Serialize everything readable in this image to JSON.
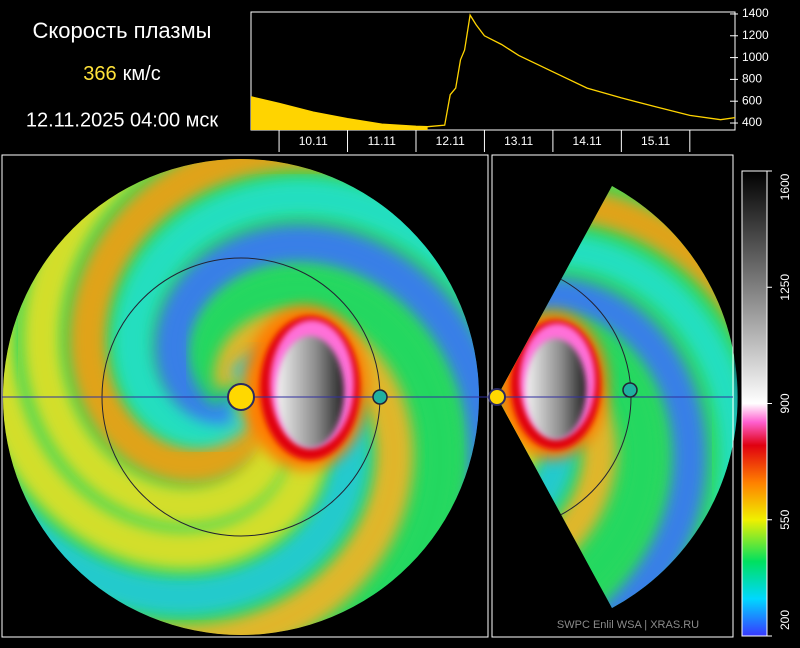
{
  "header": {
    "title": "Скорость плазмы",
    "speed_value": "366",
    "speed_unit": "км/с",
    "datetime": "12.11.2025 04:00 мск"
  },
  "chart_data": {
    "type": "line",
    "color": "#ffd400",
    "fill_color": "#ffd400",
    "x": [
      9.59,
      10.0,
      10.5,
      11.0,
      11.5,
      12.0,
      12.17,
      12.42,
      12.5,
      12.58,
      12.65,
      12.71,
      12.79,
      12.88,
      13.0,
      13.25,
      13.5,
      14.0,
      14.5,
      15.0,
      15.5,
      16.0,
      16.45,
      16.66
    ],
    "values": [
      640,
      580,
      500,
      440,
      390,
      370,
      366,
      380,
      660,
      720,
      980,
      1070,
      1390,
      1300,
      1200,
      1120,
      1020,
      870,
      720,
      630,
      550,
      470,
      430,
      450
    ],
    "fill_until": 12.17,
    "xlim": [
      9.59,
      16.66
    ],
    "xticks": [
      {
        "value": 10.5,
        "label": "10.11"
      },
      {
        "value": 11.5,
        "label": "11.11"
      },
      {
        "value": 12.5,
        "label": "12.11"
      },
      {
        "value": 13.5,
        "label": "13.11"
      },
      {
        "value": 14.5,
        "label": "14.11"
      },
      {
        "value": 15.5,
        "label": "15.11"
      }
    ],
    "xminor_ticks": [
      10,
      11,
      12,
      13,
      14,
      15,
      16
    ],
    "ylim": [
      336,
      1418
    ],
    "yticks": [
      400,
      600,
      800,
      1000,
      1200,
      1400
    ]
  },
  "colorbar": {
    "lim": [
      200,
      1600
    ],
    "ticks": [
      200,
      550,
      900,
      1250,
      1600
    ]
  },
  "credit": "SWPC Enlil WSA  |  XRAS.RU"
}
